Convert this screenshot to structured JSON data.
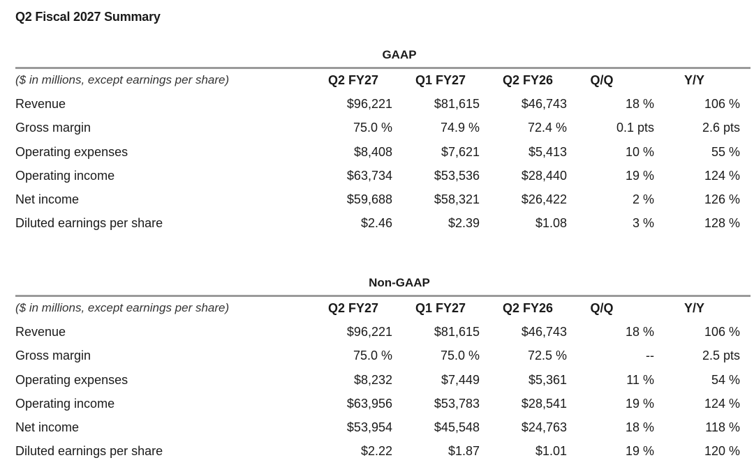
{
  "title": "Q2 Fiscal 2027 Summary",
  "sections": [
    {
      "heading": "GAAP",
      "header": {
        "label": "($ in millions, except earnings per share)",
        "cols": [
          "Q2 FY27",
          "Q1 FY27",
          "Q2 FY26",
          "Q/Q",
          "Y/Y"
        ]
      },
      "rows": [
        {
          "label": "Revenue",
          "values": [
            "$96,221",
            "$81,615",
            "$46,743",
            "18 %",
            "106 %"
          ]
        },
        {
          "label": "Gross margin",
          "values": [
            "75.0 %",
            "74.9 %",
            "72.4 %",
            "0.1 pts",
            "2.6 pts"
          ]
        },
        {
          "label": "Operating expenses",
          "values": [
            "$8,408",
            "$7,621",
            "$5,413",
            "10 %",
            "55 %"
          ]
        },
        {
          "label": "Operating income",
          "values": [
            "$63,734",
            "$53,536",
            "$28,440",
            "19 %",
            "124 %"
          ]
        },
        {
          "label": "Net income",
          "values": [
            "$59,688",
            "$58,321",
            "$26,422",
            "2 %",
            "126 %"
          ]
        },
        {
          "label": "Diluted earnings per share",
          "values": [
            "$2.46",
            "$2.39",
            "$1.08",
            "3 %",
            "128 %"
          ]
        }
      ]
    },
    {
      "heading": "Non-GAAP",
      "header": {
        "label": "($ in millions, except earnings per share)",
        "cols": [
          "Q2 FY27",
          "Q1 FY27",
          "Q2 FY26",
          "Q/Q",
          "Y/Y"
        ]
      },
      "rows": [
        {
          "label": "Revenue",
          "values": [
            "$96,221",
            "$81,615",
            "$46,743",
            "18 %",
            "106 %"
          ]
        },
        {
          "label": "Gross margin",
          "values": [
            "75.0 %",
            "75.0 %",
            "72.5 %",
            "--",
            "2.5 pts"
          ]
        },
        {
          "label": "Operating expenses",
          "values": [
            "$8,232",
            "$7,449",
            "$5,361",
            "11 %",
            "54 %"
          ]
        },
        {
          "label": "Operating income",
          "values": [
            "$63,956",
            "$53,783",
            "$28,541",
            "19 %",
            "124 %"
          ]
        },
        {
          "label": "Net income",
          "values": [
            "$53,954",
            "$45,548",
            "$24,763",
            "18 %",
            "118 %"
          ]
        },
        {
          "label": "Diluted earnings per share",
          "values": [
            "$2.22",
            "$1.87",
            "$1.01",
            "19 %",
            "120 %"
          ]
        }
      ]
    }
  ]
}
